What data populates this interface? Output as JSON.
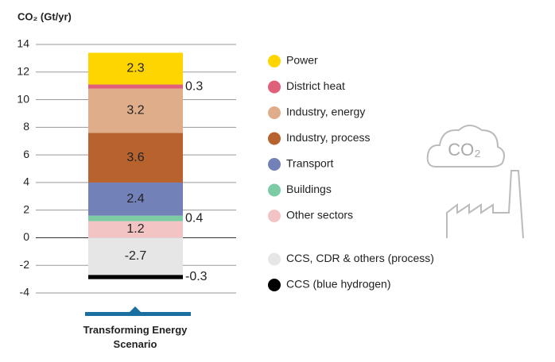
{
  "chart_data": {
    "type": "stacked-bar",
    "y_label": "CO₂ (Gt/yr)",
    "categories": [
      "Transforming Energy Scenario"
    ],
    "ylim": [
      -4,
      14
    ],
    "yticks": [
      -4,
      -2,
      0,
      2,
      4,
      6,
      8,
      10,
      12,
      14
    ],
    "grid": true,
    "icon_label": "CO₂",
    "series": [
      {
        "name": "Power",
        "color": "#ffd500",
        "values": [
          2.3
        ]
      },
      {
        "name": "District heat",
        "color": "#e0607a",
        "values": [
          0.3
        ]
      },
      {
        "name": "Industry, energy",
        "color": "#e0ad8a",
        "values": [
          3.2
        ]
      },
      {
        "name": "Industry, process",
        "color": "#b8632e",
        "values": [
          3.6
        ]
      },
      {
        "name": "Transport",
        "color": "#7281b8",
        "values": [
          2.4
        ]
      },
      {
        "name": "Buildings",
        "color": "#7ccba4",
        "values": [
          0.4
        ]
      },
      {
        "name": "Other sectors",
        "color": "#f2c4c4",
        "values": [
          1.2
        ]
      },
      {
        "name": "CCS, CDR & others (process)",
        "color": "#e6e6e6",
        "values": [
          -2.7
        ]
      },
      {
        "name": "CCS (blue hydrogen)",
        "color": "#000000",
        "values": [
          -0.3
        ]
      }
    ]
  }
}
